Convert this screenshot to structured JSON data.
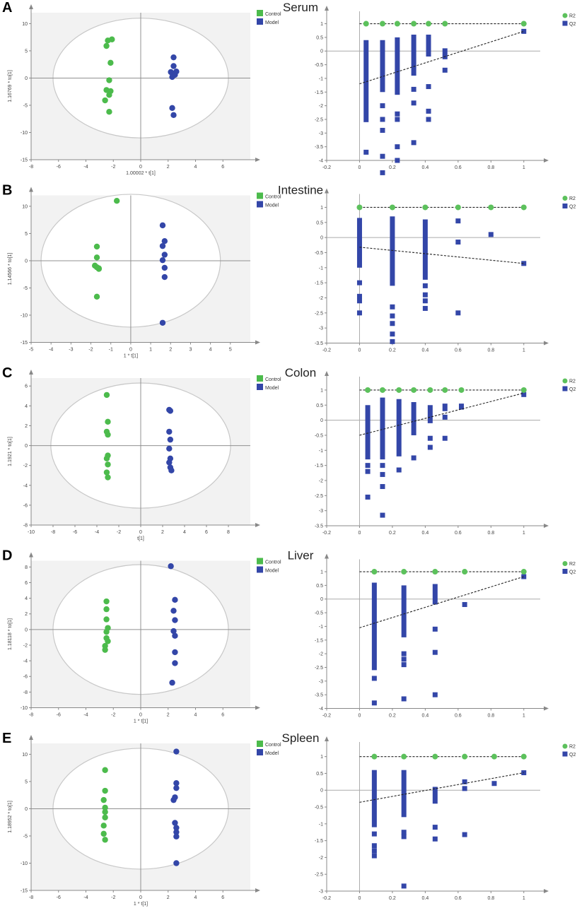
{
  "colors": {
    "control": "#4CBB4C",
    "model": "#3346A8",
    "r2": "#5CC15C",
    "q2": "#3346A8",
    "plot_bg": "#f2f2f2",
    "axis": "#909090",
    "ellipse": "#c8c8c8"
  },
  "chart_data": [
    {
      "panel": "A",
      "title": "Serum",
      "score": {
        "type": "scatter",
        "xlabel": "1.00002 * t[1]",
        "ylabel": "1.16769 * to[1]",
        "xticks": [
          -8,
          -6,
          -4,
          -2,
          0,
          2,
          4,
          6
        ],
        "yticks": [
          -15,
          -10,
          -5,
          0,
          5,
          10
        ],
        "legend": [
          "Control",
          "Model"
        ],
        "ellipse": {
          "rx": 6.4,
          "ry": 11
        },
        "control": [
          [
            -2.4,
            6.9
          ],
          [
            -2.1,
            7.1
          ],
          [
            -2.5,
            5.9
          ],
          [
            -2.2,
            2.8
          ],
          [
            -2.3,
            -0.4
          ],
          [
            -2.5,
            -2.2
          ],
          [
            -2.2,
            -2.4
          ],
          [
            -2.3,
            -3.1
          ],
          [
            -2.6,
            -4.1
          ],
          [
            -2.3,
            -6.2
          ]
        ],
        "model": [
          [
            2.4,
            3.8
          ],
          [
            2.4,
            2.2
          ],
          [
            2.6,
            1.2
          ],
          [
            2.2,
            1.1
          ],
          [
            2.3,
            0.2
          ],
          [
            2.5,
            0.6
          ],
          [
            2.3,
            -5.5
          ],
          [
            2.4,
            -6.8
          ]
        ]
      },
      "perm": {
        "type": "scatter",
        "legend": [
          "R2",
          "Q2"
        ],
        "xticks": [
          -0.2,
          0,
          0.2,
          0.4,
          0.6,
          0.8,
          1
        ],
        "yticks": [
          -4,
          -3.5,
          -3,
          -2.5,
          -2,
          -1.5,
          -1,
          -0.5,
          0,
          0.5,
          1
        ],
        "r2_x": [
          0.04,
          0.14,
          0.23,
          0.33,
          0.42,
          0.52,
          1
        ],
        "r2_y": 1,
        "q2_line": [
          [
            0,
            -1.2
          ],
          [
            1,
            0.72
          ]
        ],
        "q2_cols": [
          {
            "x": 0.04,
            "top": 0.4,
            "bot": -2.6
          },
          {
            "x": 0.14,
            "top": 0.4,
            "bot": -1.5
          },
          {
            "x": 0.23,
            "top": 0.5,
            "bot": -1.6
          },
          {
            "x": 0.33,
            "top": 0.6,
            "bot": -0.9
          },
          {
            "x": 0.42,
            "top": 0.6,
            "bot": -0.2
          },
          {
            "x": 0.52,
            "top": 0.1,
            "bot": -0.3
          }
        ],
        "q2_pts": [
          [
            0.04,
            -3.7
          ],
          [
            0.14,
            -2.0
          ],
          [
            0.14,
            -2.5
          ],
          [
            0.14,
            -2.9
          ],
          [
            0.14,
            -3.85
          ],
          [
            0.14,
            -4.45
          ],
          [
            0.23,
            -2.3
          ],
          [
            0.23,
            -2.5
          ],
          [
            0.23,
            -3.5
          ],
          [
            0.23,
            -4.0
          ],
          [
            0.33,
            -1.4
          ],
          [
            0.33,
            -1.9
          ],
          [
            0.33,
            -3.35
          ],
          [
            0.42,
            -1.3
          ],
          [
            0.42,
            -2.2
          ],
          [
            0.42,
            -2.5
          ],
          [
            0.52,
            -0.7
          ],
          [
            1,
            0.72
          ]
        ]
      }
    },
    {
      "panel": "B",
      "title": "Intestine",
      "score": {
        "type": "scatter",
        "xlabel": "1 * t[1]",
        "ylabel": "1.14566 * to[1]",
        "xticks": [
          -5,
          -4,
          -3,
          -2,
          -1,
          0,
          1,
          2,
          3,
          4,
          5
        ],
        "yticks": [
          -15,
          -10,
          -5,
          0,
          5,
          10
        ],
        "legend": [
          "Control",
          "Model"
        ],
        "ellipse": {
          "rx": 4.5,
          "ry": 12.2
        },
        "control": [
          [
            -0.7,
            11.0
          ],
          [
            -1.7,
            2.6
          ],
          [
            -1.7,
            0.6
          ],
          [
            -1.8,
            -0.9
          ],
          [
            -1.7,
            -1.2
          ],
          [
            -1.6,
            -1.4
          ],
          [
            -1.6,
            -1.5
          ],
          [
            -1.7,
            -6.6
          ]
        ],
        "model": [
          [
            1.6,
            6.5
          ],
          [
            1.7,
            3.6
          ],
          [
            1.6,
            2.7
          ],
          [
            1.7,
            1.1
          ],
          [
            1.6,
            0.1
          ],
          [
            1.7,
            -1.3
          ],
          [
            1.7,
            -3.0
          ],
          [
            1.6,
            -11.4
          ]
        ]
      },
      "perm": {
        "type": "scatter",
        "legend": [
          "R2",
          "Q2"
        ],
        "xticks": [
          -0.2,
          0,
          0.2,
          0.4,
          0.6,
          0.8,
          1
        ],
        "yticks": [
          -3.5,
          -3,
          -2.5,
          -2,
          -1.5,
          -1,
          -0.5,
          0,
          0.5,
          1
        ],
        "r2_x": [
          0,
          0.2,
          0.4,
          0.6,
          0.8,
          1
        ],
        "r2_y": 1,
        "q2_line": [
          [
            0,
            -0.32
          ],
          [
            1,
            -0.86
          ]
        ],
        "q2_cols": [
          {
            "x": 0,
            "top": 0.65,
            "bot": -1.0
          },
          {
            "x": 0.2,
            "top": 0.7,
            "bot": -1.6
          },
          {
            "x": 0.4,
            "top": 0.6,
            "bot": -1.4
          }
        ],
        "q2_pts": [
          [
            0,
            -1.5
          ],
          [
            0,
            -1.95
          ],
          [
            0,
            -2.1
          ],
          [
            0,
            -2.5
          ],
          [
            0.2,
            -2.3
          ],
          [
            0.2,
            -2.6
          ],
          [
            0.2,
            -2.85
          ],
          [
            0.2,
            -3.2
          ],
          [
            0.2,
            -3.45
          ],
          [
            0.4,
            -1.6
          ],
          [
            0.4,
            -1.9
          ],
          [
            0.4,
            -2.1
          ],
          [
            0.4,
            -2.35
          ],
          [
            0.6,
            0.55
          ],
          [
            0.6,
            -0.15
          ],
          [
            0.6,
            -2.5
          ],
          [
            0.8,
            0.1
          ],
          [
            1,
            -0.86
          ]
        ]
      }
    },
    {
      "panel": "C",
      "title": "Colon",
      "score": {
        "type": "scatter",
        "xlabel": "t[1]",
        "ylabel": "1.1921 * to[1]",
        "xticks": [
          -10,
          -8,
          -6,
          -4,
          -2,
          0,
          2,
          4,
          6,
          8
        ],
        "yticks": [
          -8,
          -6,
          -4,
          -2,
          0,
          2,
          4,
          6
        ],
        "legend": [
          "Control",
          "Model"
        ],
        "ellipse": {
          "rx": 8.2,
          "ry": 6.3
        },
        "control": [
          [
            -3.1,
            5.1
          ],
          [
            -3.0,
            2.4
          ],
          [
            -3.1,
            1.4
          ],
          [
            -3.0,
            1.1
          ],
          [
            -3.0,
            -1.0
          ],
          [
            -3.1,
            -1.3
          ],
          [
            -3.0,
            -1.9
          ],
          [
            -3.1,
            -2.7
          ],
          [
            -3.0,
            -3.2
          ]
        ],
        "model": [
          [
            2.6,
            3.6
          ],
          [
            2.7,
            3.5
          ],
          [
            2.6,
            1.4
          ],
          [
            2.7,
            0.6
          ],
          [
            2.6,
            -0.3
          ],
          [
            2.7,
            -1.3
          ],
          [
            2.6,
            -1.7
          ],
          [
            2.7,
            -2.2
          ],
          [
            2.8,
            -2.5
          ]
        ]
      },
      "perm": {
        "type": "scatter",
        "legend": [
          "R2",
          "Q2"
        ],
        "xticks": [
          -0.2,
          0,
          0.2,
          0.4,
          0.6,
          0.8,
          1
        ],
        "yticks": [
          -3.5,
          -3,
          -2.5,
          -2,
          -1.5,
          -1,
          -0.5,
          0,
          0.5,
          1
        ],
        "r2_x": [
          0.05,
          0.14,
          0.24,
          0.33,
          0.43,
          0.52,
          0.62,
          1
        ],
        "r2_y": 1,
        "q2_line": [
          [
            0,
            -0.5
          ],
          [
            1,
            0.9
          ]
        ],
        "q2_cols": [
          {
            "x": 0.05,
            "top": 0.5,
            "bot": -1.3
          },
          {
            "x": 0.14,
            "top": 0.75,
            "bot": -1.3
          },
          {
            "x": 0.24,
            "top": 0.7,
            "bot": -1.2
          },
          {
            "x": 0.33,
            "top": 0.6,
            "bot": -0.5
          },
          {
            "x": 0.43,
            "top": 0.5,
            "bot": -0.1
          },
          {
            "x": 0.52,
            "top": 0.55,
            "bot": 0.3
          },
          {
            "x": 0.62,
            "top": 0.55,
            "bot": 0.35
          }
        ],
        "q2_pts": [
          [
            0.05,
            -1.5
          ],
          [
            0.05,
            -1.7
          ],
          [
            0.05,
            -2.55
          ],
          [
            0.14,
            -1.5
          ],
          [
            0.14,
            -1.8
          ],
          [
            0.14,
            -2.2
          ],
          [
            0.14,
            -3.15
          ],
          [
            0.24,
            -1.65
          ],
          [
            0.33,
            -1.25
          ],
          [
            0.43,
            -0.6
          ],
          [
            0.43,
            -0.9
          ],
          [
            0.52,
            0.1
          ],
          [
            0.52,
            -0.6
          ],
          [
            1,
            0.85
          ]
        ]
      }
    },
    {
      "panel": "D",
      "title": "Liver",
      "score": {
        "type": "scatter",
        "xlabel": "1 * t[1]",
        "ylabel": "1.18118 * to[1]",
        "xticks": [
          -8,
          -6,
          -4,
          -2,
          0,
          2,
          4,
          6
        ],
        "yticks": [
          -10,
          -8,
          -6,
          -4,
          -2,
          0,
          2,
          4,
          6,
          8
        ],
        "legend": [
          "Control",
          "Model"
        ],
        "ellipse": {
          "rx": 6.4,
          "ry": 8.3
        },
        "control": [
          [
            -2.5,
            3.6
          ],
          [
            -2.5,
            2.6
          ],
          [
            -2.5,
            1.3
          ],
          [
            -2.4,
            0.2
          ],
          [
            -2.5,
            -0.3
          ],
          [
            -2.5,
            -1.1
          ],
          [
            -2.4,
            -1.5
          ],
          [
            -2.6,
            -2.1
          ],
          [
            -2.6,
            -2.6
          ]
        ],
        "model": [
          [
            2.2,
            8.1
          ],
          [
            2.5,
            3.8
          ],
          [
            2.4,
            2.4
          ],
          [
            2.5,
            1.2
          ],
          [
            2.4,
            -0.2
          ],
          [
            2.5,
            -0.8
          ],
          [
            2.5,
            -2.9
          ],
          [
            2.5,
            -4.3
          ],
          [
            2.3,
            -6.8
          ]
        ]
      },
      "perm": {
        "type": "scatter",
        "legend": [
          "R2",
          "Q2"
        ],
        "xticks": [
          -0.2,
          0,
          0.2,
          0.4,
          0.6,
          0.8,
          1
        ],
        "yticks": [
          -4,
          -3.5,
          -3,
          -2.5,
          -2,
          -1.5,
          -1,
          -0.5,
          0,
          0.5,
          1
        ],
        "r2_x": [
          0.09,
          0.27,
          0.46,
          0.64,
          1
        ],
        "r2_y": 1,
        "q2_line": [
          [
            0,
            -1.05
          ],
          [
            1,
            0.82
          ]
        ],
        "q2_cols": [
          {
            "x": 0.09,
            "top": 0.6,
            "bot": -2.6
          },
          {
            "x": 0.27,
            "top": 0.5,
            "bot": -1.4
          },
          {
            "x": 0.46,
            "top": 0.55,
            "bot": -0.2
          }
        ],
        "q2_pts": [
          [
            0.09,
            -2.9
          ],
          [
            0.09,
            -3.8
          ],
          [
            0.27,
            -2.0
          ],
          [
            0.27,
            -2.2
          ],
          [
            0.27,
            -2.4
          ],
          [
            0.27,
            -3.65
          ],
          [
            0.46,
            -1.1
          ],
          [
            0.46,
            -1.95
          ],
          [
            0.46,
            -3.5
          ],
          [
            0.64,
            -0.2
          ],
          [
            1,
            0.82
          ]
        ]
      }
    },
    {
      "panel": "E",
      "title": "Spleen",
      "score": {
        "type": "scatter",
        "xlabel": "1 * t[1]",
        "ylabel": "1.18952 * to[1]",
        "xticks": [
          -8,
          -6,
          -4,
          -2,
          0,
          2,
          4,
          6
        ],
        "yticks": [
          -15,
          -10,
          -5,
          0,
          5,
          10
        ],
        "legend": [
          "Control",
          "Model"
        ],
        "ellipse": {
          "rx": 6.4,
          "ry": 11.1
        },
        "control": [
          [
            -2.6,
            7.1
          ],
          [
            -2.6,
            3.3
          ],
          [
            -2.7,
            1.6
          ],
          [
            -2.6,
            0.2
          ],
          [
            -2.6,
            -0.6
          ],
          [
            -2.6,
            -1.6
          ],
          [
            -2.7,
            -3.1
          ],
          [
            -2.7,
            -4.6
          ],
          [
            -2.6,
            -5.7
          ]
        ],
        "model": [
          [
            2.6,
            10.5
          ],
          [
            2.6,
            4.7
          ],
          [
            2.6,
            3.8
          ],
          [
            2.5,
            2.1
          ],
          [
            2.4,
            1.6
          ],
          [
            2.5,
            -2.6
          ],
          [
            2.6,
            -3.5
          ],
          [
            2.6,
            -4.3
          ],
          [
            2.6,
            -5.1
          ],
          [
            2.6,
            -10.0
          ]
        ]
      },
      "perm": {
        "type": "scatter",
        "legend": [
          "R2",
          "Q2"
        ],
        "xticks": [
          -0.2,
          0,
          0.2,
          0.4,
          0.6,
          0.8,
          1
        ],
        "yticks": [
          -3,
          -2.5,
          -2,
          -1.5,
          -1,
          -0.5,
          0,
          0.5,
          1
        ],
        "r2_x": [
          0.09,
          0.27,
          0.46,
          0.64,
          0.82,
          1
        ],
        "r2_y": 1,
        "q2_line": [
          [
            0,
            -0.36
          ],
          [
            1,
            0.52
          ]
        ],
        "q2_cols": [
          {
            "x": 0.09,
            "top": 0.6,
            "bot": -1.1
          },
          {
            "x": 0.27,
            "top": 0.6,
            "bot": -0.8
          },
          {
            "x": 0.46,
            "top": 0.1,
            "bot": -0.4
          }
        ],
        "q2_pts": [
          [
            0.09,
            -1.3
          ],
          [
            0.09,
            -1.65
          ],
          [
            0.09,
            -1.8
          ],
          [
            0.09,
            -1.95
          ],
          [
            0.27,
            -1.25
          ],
          [
            0.27,
            -1.38
          ],
          [
            0.27,
            -2.85
          ],
          [
            0.46,
            -1.1
          ],
          [
            0.46,
            -1.45
          ],
          [
            0.64,
            0.25
          ],
          [
            0.64,
            0.05
          ],
          [
            0.64,
            -1.32
          ],
          [
            0.82,
            0.2
          ],
          [
            1,
            0.52
          ]
        ]
      }
    }
  ]
}
